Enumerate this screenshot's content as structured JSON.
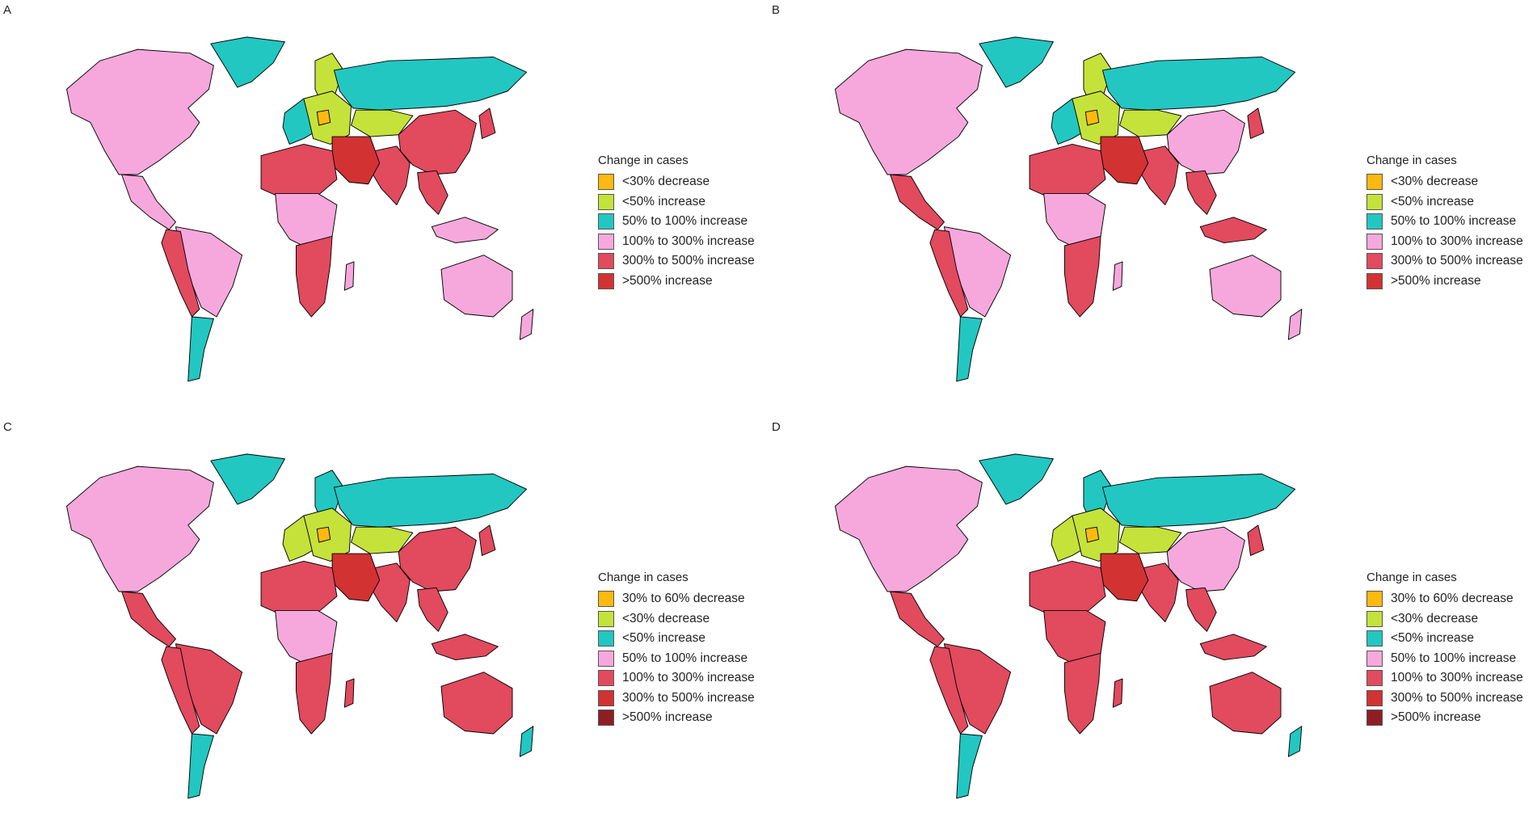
{
  "colors": {
    "orange": "#FFB90F",
    "lime": "#C5E23A",
    "teal": "#22C7C2",
    "pink": "#F6A8DC",
    "red": "#E24A5E",
    "darkred": "#D23232",
    "maroon": "#8E1E24",
    "border": "#000000",
    "swatch_border": "#555555"
  },
  "panels": [
    {
      "letter": "A",
      "legend_title": "Change in cases",
      "legend": [
        {
          "label": "<30% decrease",
          "color": "#FFB90F"
        },
        {
          "label": "<50% increase",
          "color": "#C5E23A"
        },
        {
          "label": "50% to 100% increase",
          "color": "#22C7C2"
        },
        {
          "label": "100% to 300% increase",
          "color": "#F6A8DC"
        },
        {
          "label": "300% to 500% increase",
          "color": "#E24A5E"
        },
        {
          "label": ">500% increase",
          "color": "#D23232"
        }
      ],
      "regions": {
        "north_america": "#F6A8DC",
        "greenland": "#22C7C2",
        "central_america": "#F6A8DC",
        "south_america_north": "#F6A8DC",
        "south_america_west": "#E24A5E",
        "south_america_south": "#22C7C2",
        "western_europe": "#22C7C2",
        "central_europe": "#C5E23A",
        "scandinavia": "#C5E23A",
        "europe_spot": "#FFB90F",
        "russia": "#22C7C2",
        "kazakhstan": "#C5E23A",
        "china": "#E24A5E",
        "india": "#E24A5E",
        "middle_east": "#D23232",
        "north_africa": "#E24A5E",
        "central_africa": "#F6A8DC",
        "southern_africa": "#E24A5E",
        "madagascar": "#F6A8DC",
        "southeast_asia": "#E24A5E",
        "indonesia": "#F6A8DC",
        "japan": "#E24A5E",
        "australia": "#F6A8DC",
        "new_zealand": "#F6A8DC"
      }
    },
    {
      "letter": "B",
      "legend_title": "Change in cases",
      "legend": [
        {
          "label": "<30% decrease",
          "color": "#FFB90F"
        },
        {
          "label": "<50% increase",
          "color": "#C5E23A"
        },
        {
          "label": "50% to 100% increase",
          "color": "#22C7C2"
        },
        {
          "label": "100% to 300% increase",
          "color": "#F6A8DC"
        },
        {
          "label": "300% to 500% increase",
          "color": "#E24A5E"
        },
        {
          "label": ">500% increase",
          "color": "#D23232"
        }
      ],
      "regions": {
        "north_america": "#F6A8DC",
        "greenland": "#22C7C2",
        "central_america": "#E24A5E",
        "south_america_north": "#F6A8DC",
        "south_america_west": "#E24A5E",
        "south_america_south": "#22C7C2",
        "western_europe": "#22C7C2",
        "central_europe": "#C5E23A",
        "scandinavia": "#C5E23A",
        "europe_spot": "#FFB90F",
        "russia": "#22C7C2",
        "kazakhstan": "#C5E23A",
        "china": "#F6A8DC",
        "india": "#E24A5E",
        "middle_east": "#D23232",
        "north_africa": "#E24A5E",
        "central_africa": "#F6A8DC",
        "southern_africa": "#E24A5E",
        "madagascar": "#F6A8DC",
        "southeast_asia": "#E24A5E",
        "indonesia": "#E24A5E",
        "japan": "#E24A5E",
        "australia": "#F6A8DC",
        "new_zealand": "#F6A8DC"
      }
    },
    {
      "letter": "C",
      "legend_title": "Change in cases",
      "legend": [
        {
          "label": "30% to 60% decrease",
          "color": "#FFB90F"
        },
        {
          "label": "<30% decrease",
          "color": "#C5E23A"
        },
        {
          "label": "<50% increase",
          "color": "#22C7C2"
        },
        {
          "label": "50% to 100% increase",
          "color": "#F6A8DC"
        },
        {
          "label": "100% to 300% increase",
          "color": "#E24A5E"
        },
        {
          "label": "300% to 500% increase",
          "color": "#D23232"
        },
        {
          "label": ">500% increase",
          "color": "#8E1E24"
        }
      ],
      "regions": {
        "north_america": "#F6A8DC",
        "greenland": "#22C7C2",
        "central_america": "#E24A5E",
        "south_america_north": "#E24A5E",
        "south_america_west": "#E24A5E",
        "south_america_south": "#22C7C2",
        "western_europe": "#C5E23A",
        "central_europe": "#C5E23A",
        "scandinavia": "#22C7C2",
        "europe_spot": "#FFB90F",
        "russia": "#22C7C2",
        "kazakhstan": "#C5E23A",
        "china": "#E24A5E",
        "india": "#E24A5E",
        "middle_east": "#D23232",
        "north_africa": "#E24A5E",
        "central_africa": "#F6A8DC",
        "southern_africa": "#E24A5E",
        "madagascar": "#E24A5E",
        "southeast_asia": "#E24A5E",
        "indonesia": "#E24A5E",
        "japan": "#E24A5E",
        "australia": "#E24A5E",
        "new_zealand": "#22C7C2"
      }
    },
    {
      "letter": "D",
      "legend_title": "Change in cases",
      "legend": [
        {
          "label": "30% to 60% decrease",
          "color": "#FFB90F"
        },
        {
          "label": "<30% decrease",
          "color": "#C5E23A"
        },
        {
          "label": "<50% increase",
          "color": "#22C7C2"
        },
        {
          "label": "50% to 100% increase",
          "color": "#F6A8DC"
        },
        {
          "label": "100% to 300% increase",
          "color": "#E24A5E"
        },
        {
          "label": "300% to 500% increase",
          "color": "#D23232"
        },
        {
          "label": ">500% increase",
          "color": "#8E1E24"
        }
      ],
      "regions": {
        "north_america": "#F6A8DC",
        "greenland": "#22C7C2",
        "central_america": "#E24A5E",
        "south_america_north": "#E24A5E",
        "south_america_west": "#E24A5E",
        "south_america_south": "#22C7C2",
        "western_europe": "#C5E23A",
        "central_europe": "#C5E23A",
        "scandinavia": "#22C7C2",
        "europe_spot": "#FFB90F",
        "russia": "#22C7C2",
        "kazakhstan": "#C5E23A",
        "china": "#F6A8DC",
        "india": "#E24A5E",
        "middle_east": "#D23232",
        "north_africa": "#E24A5E",
        "central_africa": "#E24A5E",
        "southern_africa": "#E24A5E",
        "madagascar": "#E24A5E",
        "southeast_asia": "#E24A5E",
        "indonesia": "#E24A5E",
        "japan": "#E24A5E",
        "australia": "#E24A5E",
        "new_zealand": "#22C7C2"
      }
    }
  ]
}
